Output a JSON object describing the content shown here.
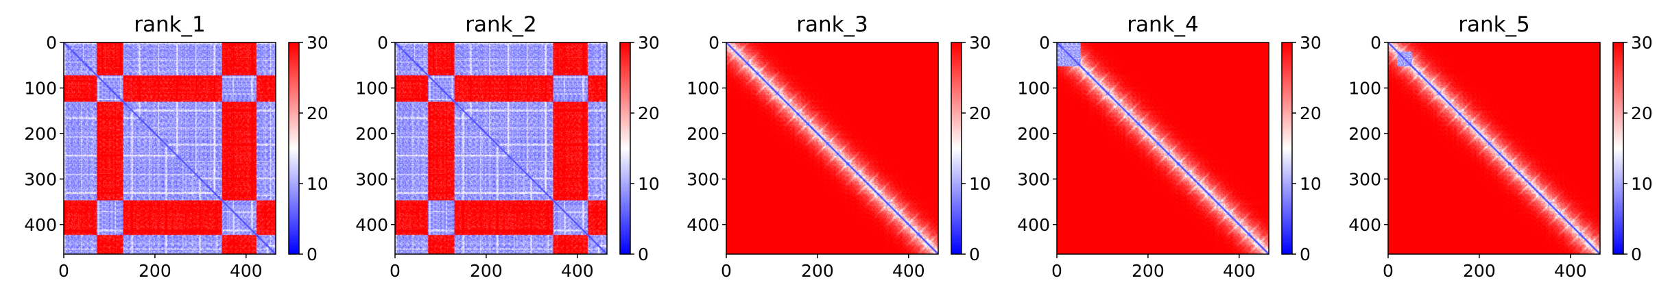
{
  "chart_data": [
    {
      "type": "heatmap",
      "title": "rank_1",
      "xlabel": "",
      "ylabel": "",
      "xlim": [
        0,
        465
      ],
      "ylim": [
        465,
        0
      ],
      "x_ticks": [
        "0",
        "200",
        "400"
      ],
      "y_ticks": [
        "0",
        "100",
        "200",
        "300",
        "400"
      ],
      "colorbar": {
        "colormap": "bwr",
        "vmin": 0,
        "vmax": 30,
        "ticks": [
          "0",
          "10",
          "20",
          "30"
        ]
      },
      "pattern": {
        "background_distance": 8,
        "diagonal": "low distance (blue) along the main diagonal",
        "high_distance_row_bands": [
          [
            72,
            128
          ],
          [
            345,
            420
          ]
        ],
        "high_distance_column_bands": [
          [
            90,
            100
          ]
        ]
      }
    },
    {
      "type": "heatmap",
      "title": "rank_2",
      "xlabel": "",
      "ylabel": "",
      "xlim": [
        0,
        465
      ],
      "ylim": [
        465,
        0
      ],
      "x_ticks": [
        "0",
        "200",
        "400"
      ],
      "y_ticks": [
        "0",
        "100",
        "200",
        "300",
        "400"
      ],
      "colorbar": {
        "colormap": "bwr",
        "vmin": 0,
        "vmax": 30,
        "ticks": [
          "0",
          "10",
          "20",
          "30"
        ]
      },
      "pattern": {
        "background_distance": 8,
        "diagonal": "low distance (blue) along the main diagonal",
        "high_distance_row_bands": [
          [
            72,
            128
          ],
          [
            345,
            420
          ]
        ],
        "high_distance_column_bands": [
          [
            85,
            100
          ]
        ]
      }
    },
    {
      "type": "heatmap",
      "title": "rank_3",
      "xlabel": "",
      "ylabel": "",
      "xlim": [
        0,
        465
      ],
      "ylim": [
        465,
        0
      ],
      "x_ticks": [
        "0",
        "200",
        "400"
      ],
      "y_ticks": [
        "0",
        "100",
        "200",
        "300",
        "400"
      ],
      "colorbar": {
        "colormap": "bwr",
        "vmin": 0,
        "vmax": 30,
        "ticks": [
          "0",
          "10",
          "20",
          "30"
        ]
      },
      "pattern": {
        "background_distance": 30,
        "diagonal": "low distance (blue) along the main diagonal with lighter halo"
      }
    },
    {
      "type": "heatmap",
      "title": "rank_4",
      "xlabel": "",
      "ylabel": "",
      "xlim": [
        0,
        465
      ],
      "ylim": [
        465,
        0
      ],
      "x_ticks": [
        "0",
        "200",
        "400"
      ],
      "y_ticks": [
        "0",
        "100",
        "200",
        "300",
        "400"
      ],
      "colorbar": {
        "colormap": "bwr",
        "vmin": 0,
        "vmax": 30,
        "ticks": [
          "0",
          "10",
          "20",
          "30"
        ]
      },
      "pattern": {
        "background_distance": 30,
        "diagonal": "low distance (blue) along the main diagonal with lighter halo",
        "low_distance_block": [
          0,
          50
        ]
      }
    },
    {
      "type": "heatmap",
      "title": "rank_5",
      "xlabel": "",
      "ylabel": "",
      "xlim": [
        0,
        465
      ],
      "ylim": [
        465,
        0
      ],
      "x_ticks": [
        "0",
        "200",
        "400"
      ],
      "y_ticks": [
        "0",
        "100",
        "200",
        "300",
        "400"
      ],
      "colorbar": {
        "colormap": "bwr",
        "vmin": 0,
        "vmax": 30,
        "ticks": [
          "0",
          "10",
          "20",
          "30"
        ]
      },
      "pattern": {
        "background_distance": 30,
        "diagonal": "low distance (blue) along the main diagonal with lighter halo",
        "low_distance_block": [
          20,
          50
        ]
      }
    }
  ]
}
